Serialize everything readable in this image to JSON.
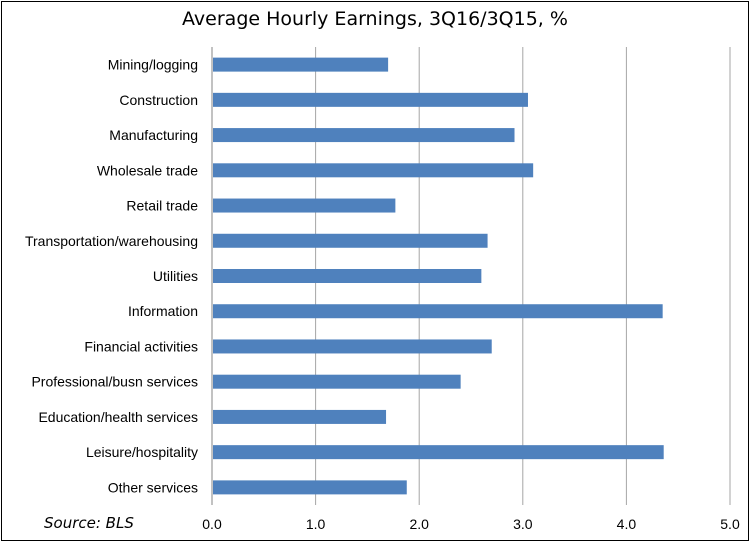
{
  "chart_data": {
    "type": "bar",
    "orientation": "horizontal",
    "title": "Average Hourly Earnings, 3Q16/3Q15, %",
    "source": "Source: BLS",
    "categories": [
      "Mining/logging",
      "Construction",
      "Manufacturing",
      "Wholesale trade",
      "Retail trade",
      "Transportation/warehousing",
      "Utilities",
      "Information",
      "Financial activities",
      "Professional/busn services",
      "Education/health services",
      "Leisure/hospitality",
      "Other services"
    ],
    "values": [
      1.7,
      3.05,
      2.92,
      3.1,
      1.77,
      2.66,
      2.6,
      4.35,
      2.7,
      2.4,
      1.68,
      4.36,
      1.88
    ],
    "xlim": [
      0,
      5
    ],
    "xticks": [
      "0.0",
      "1.0",
      "2.0",
      "3.0",
      "4.0",
      "5.0"
    ],
    "xlabel": "",
    "ylabel": "",
    "grid": "vertical",
    "legend": "none",
    "bar_color": "#4F81BD",
    "grid_color": "#A6A6A6"
  }
}
